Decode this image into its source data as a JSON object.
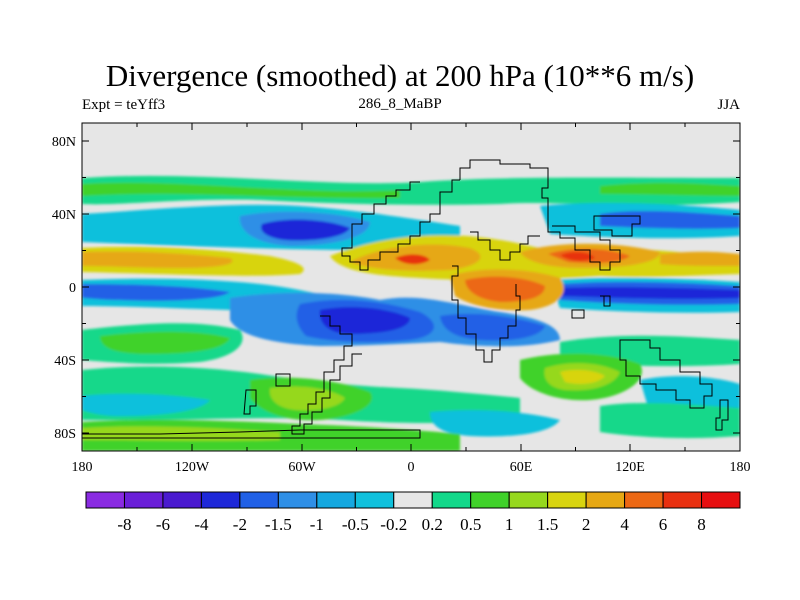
{
  "title": "Divergence (smoothed) at 200 hPa (10**6 m/s)",
  "left_label": "Expt = teYff3",
  "center_label": "286_8_MaBP",
  "right_label": "JJA",
  "map": {
    "lat_ticks": [
      "80N",
      "40N",
      "0",
      "40S",
      "80S"
    ],
    "lon_ticks": [
      "180",
      "120W",
      "60W",
      "0",
      "60E",
      "120E",
      "180"
    ]
  },
  "colorbar": {
    "colors": [
      "#8a2be2",
      "#6a1fd8",
      "#4a1ad0",
      "#1e28d8",
      "#2060e6",
      "#2f8fe6",
      "#15a8e0",
      "#10c0dc",
      "#e6e6e6",
      "#12d88a",
      "#40d22a",
      "#96d81e",
      "#d8d410",
      "#e6a814",
      "#ec6814",
      "#e83010",
      "#e60e10"
    ],
    "labels": [
      "-8",
      "-6",
      "-4",
      "-2",
      "-1.5",
      "-1",
      "-0.5",
      "-0.2",
      "0.2",
      "0.5",
      "1",
      "1.5",
      "2",
      "4",
      "6",
      "8"
    ]
  }
}
